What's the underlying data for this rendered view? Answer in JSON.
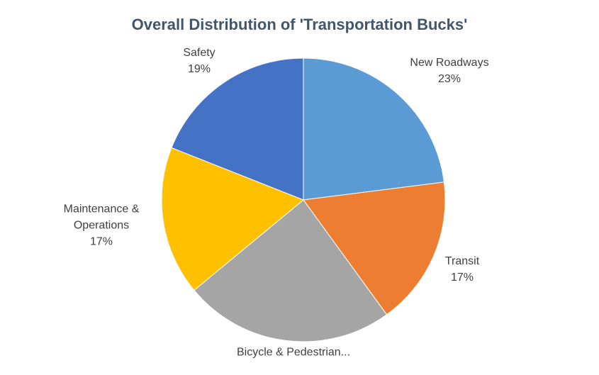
{
  "chart_data": {
    "type": "pie",
    "title": "Overall Distribution of 'Transportation Bucks'",
    "categories": [
      "New Roadways",
      "Transit",
      "Bicycle & Pedestrian...",
      "Maintenance & Operations",
      "Safety"
    ],
    "values": [
      23,
      17,
      24,
      17,
      19
    ],
    "value_labels": [
      "23%",
      "17%",
      null,
      "17%",
      "19%"
    ],
    "colors": [
      "#5b9bd5",
      "#ed7d31",
      "#a5a5a5",
      "#ffc000",
      "#4472c4"
    ]
  }
}
